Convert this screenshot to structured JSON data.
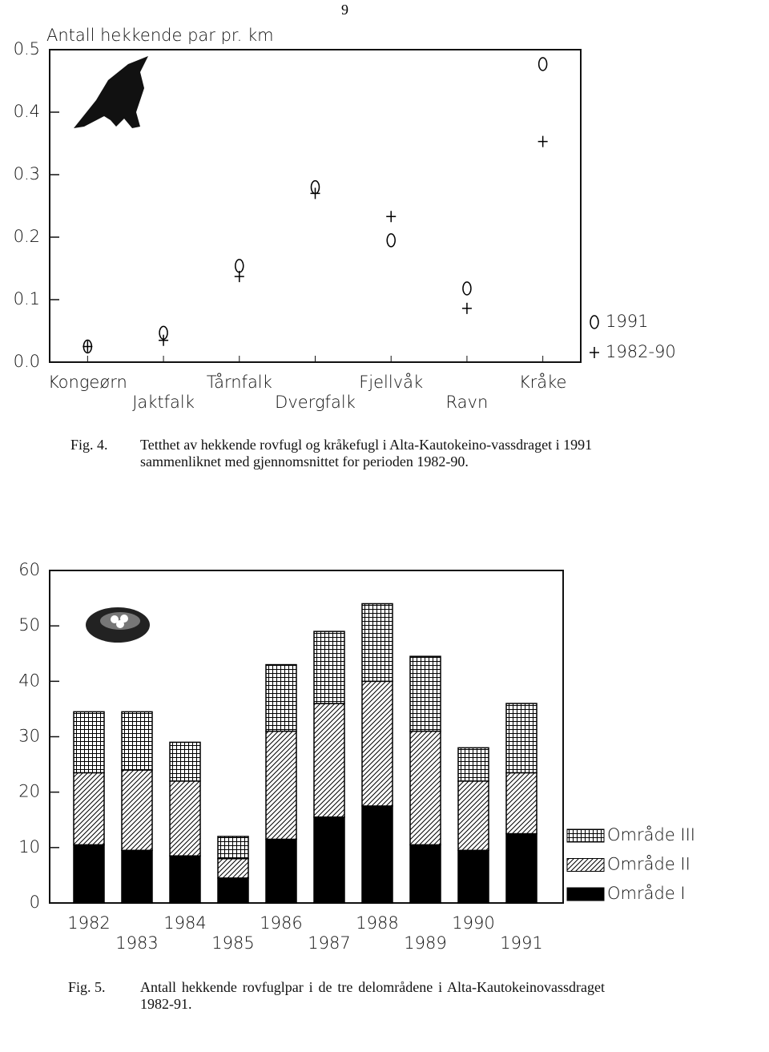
{
  "page_number": "9",
  "captions": [
    {
      "label": "Fig. 4.",
      "text": "Tetthet av hekkende rovfugl og kråkefugl i Alta-Kautokeino-vassdraget i 1991 sammenliknet med gjennomsnittet for perioden 1982-90."
    },
    {
      "label": "Fig. 5.",
      "text": "Antall hekkende rovfuglpar i de tre delområdene i Alta-Kautokeinovassdraget 1982-91."
    }
  ],
  "chart_data": [
    {
      "type": "point",
      "title": "Antall hekkende par pr. km",
      "categories": [
        "Kongeørn",
        "Jaktfalk",
        "Tårnfalk",
        "Dvergfalk",
        "Fjellvåk",
        "Ravn",
        "Kråke"
      ],
      "series": [
        {
          "name": "1991",
          "marker": "circle",
          "color": "#000000",
          "values": [
            0.025,
            0.047,
            0.154,
            0.28,
            0.195,
            0.118,
            0.477
          ]
        },
        {
          "name": "1982-90",
          "marker": "plus",
          "color": "#000000",
          "values": [
            0.025,
            0.035,
            0.137,
            0.27,
            0.233,
            0.086,
            0.353
          ]
        }
      ],
      "ylim": [
        0,
        0.5
      ],
      "yticks": [
        {
          "value": 0,
          "label": "0.0"
        },
        {
          "value": 0.1,
          "label": "0.1"
        },
        {
          "value": 0.2,
          "label": "0.2"
        },
        {
          "value": 0.3,
          "label": "0.3"
        },
        {
          "value": 0.4,
          "label": "0.4"
        },
        {
          "value": 0.5,
          "label": "0.5"
        }
      ]
    },
    {
      "type": "stacked_bar",
      "categories": [
        "1982",
        "1983",
        "1984",
        "1985",
        "1986",
        "1987",
        "1988",
        "1989",
        "1990",
        "1991"
      ],
      "series": [
        {
          "name": "Område I",
          "pattern": "solid",
          "color": "#000000",
          "values": [
            10.5,
            9.5,
            8.5,
            4.5,
            11.5,
            15.5,
            17.5,
            10.5,
            9.5,
            12.5
          ]
        },
        {
          "name": "Område II",
          "pattern": "hatch",
          "color": "#000000",
          "values": [
            13,
            14.5,
            13.5,
            3.5,
            19.5,
            20.5,
            22.5,
            20.5,
            12.5,
            11
          ]
        },
        {
          "name": "Område III",
          "pattern": "grid",
          "color": "#000000",
          "values": [
            11,
            10.5,
            7,
            4,
            12,
            13,
            14,
            13.5,
            6,
            12.5
          ]
        }
      ],
      "ylim": [
        0,
        60
      ],
      "yticks": [
        0,
        10,
        20,
        30,
        40,
        50,
        60
      ]
    }
  ]
}
